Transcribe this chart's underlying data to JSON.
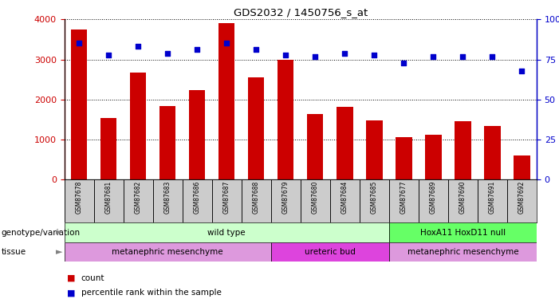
{
  "title": "GDS2032 / 1450756_s_at",
  "samples": [
    "GSM87678",
    "GSM87681",
    "GSM87682",
    "GSM87683",
    "GSM87686",
    "GSM87687",
    "GSM87688",
    "GSM87679",
    "GSM87680",
    "GSM87684",
    "GSM87685",
    "GSM87677",
    "GSM87689",
    "GSM87690",
    "GSM87691",
    "GSM87692"
  ],
  "counts": [
    3750,
    1530,
    2670,
    1840,
    2240,
    3900,
    2550,
    3000,
    1640,
    1820,
    1480,
    1060,
    1120,
    1460,
    1330,
    590
  ],
  "percentiles": [
    85,
    78,
    83,
    79,
    81,
    85,
    81,
    78,
    77,
    79,
    78,
    73,
    77,
    77,
    77,
    68
  ],
  "ylim_left": [
    0,
    4000
  ],
  "ylim_right": [
    0,
    100
  ],
  "yticks_left": [
    0,
    1000,
    2000,
    3000,
    4000
  ],
  "yticks_right": [
    0,
    25,
    50,
    75,
    100
  ],
  "bar_color": "#cc0000",
  "dot_color": "#0000cc",
  "tick_bg_color": "#cccccc",
  "genotype_groups": [
    {
      "label": "wild type",
      "start": 0,
      "end": 11,
      "color": "#ccffcc"
    },
    {
      "label": "HoxA11 HoxD11 null",
      "start": 11,
      "end": 16,
      "color": "#66ff66"
    }
  ],
  "tissue_groups": [
    {
      "label": "metanephric mesenchyme",
      "start": 0,
      "end": 7,
      "color": "#dd99dd"
    },
    {
      "label": "ureteric bud",
      "start": 7,
      "end": 11,
      "color": "#dd44dd"
    },
    {
      "label": "metanephric mesenchyme",
      "start": 11,
      "end": 16,
      "color": "#dd99dd"
    }
  ],
  "legend_count_color": "#cc0000",
  "legend_percentile_color": "#0000cc"
}
